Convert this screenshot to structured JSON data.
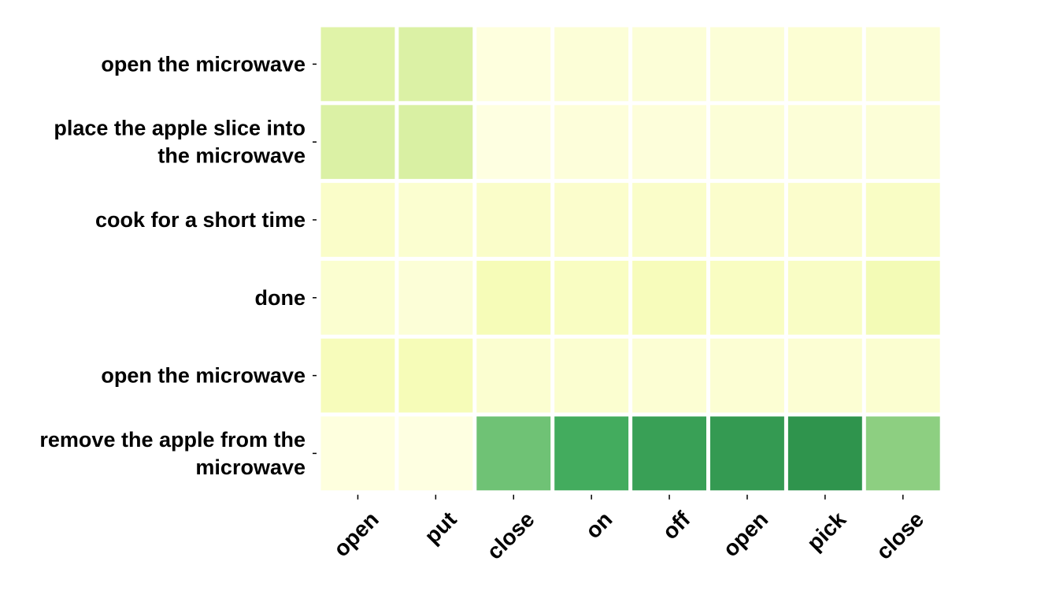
{
  "chart_data": {
    "type": "heatmap",
    "title": "",
    "xlabel": "",
    "ylabel": "",
    "x_categories": [
      "open",
      "put",
      "close",
      "on",
      "off",
      "open",
      "pick",
      "close"
    ],
    "y_categories": [
      [
        "open the microwave"
      ],
      [
        "place the apple slice into",
        "the microwave"
      ],
      [
        "cook for a short time"
      ],
      [
        "done"
      ],
      [
        "open the microwave"
      ],
      [
        "remove the apple from the",
        "microwave"
      ]
    ],
    "values": [
      [
        0.22,
        0.24,
        0.02,
        0.04,
        0.04,
        0.04,
        0.05,
        0.04
      ],
      [
        0.24,
        0.25,
        0.01,
        0.03,
        0.03,
        0.04,
        0.04,
        0.04
      ],
      [
        0.08,
        0.06,
        0.08,
        0.07,
        0.08,
        0.07,
        0.07,
        0.09
      ],
      [
        0.06,
        0.04,
        0.13,
        0.1,
        0.12,
        0.1,
        0.09,
        0.14
      ],
      [
        0.12,
        0.13,
        0.06,
        0.06,
        0.05,
        0.05,
        0.05,
        0.06
      ],
      [
        0.02,
        0.01,
        0.52,
        0.62,
        0.66,
        0.68,
        0.7,
        0.45
      ]
    ],
    "colormap": "YlGn",
    "colorbar": false,
    "grid": false
  }
}
